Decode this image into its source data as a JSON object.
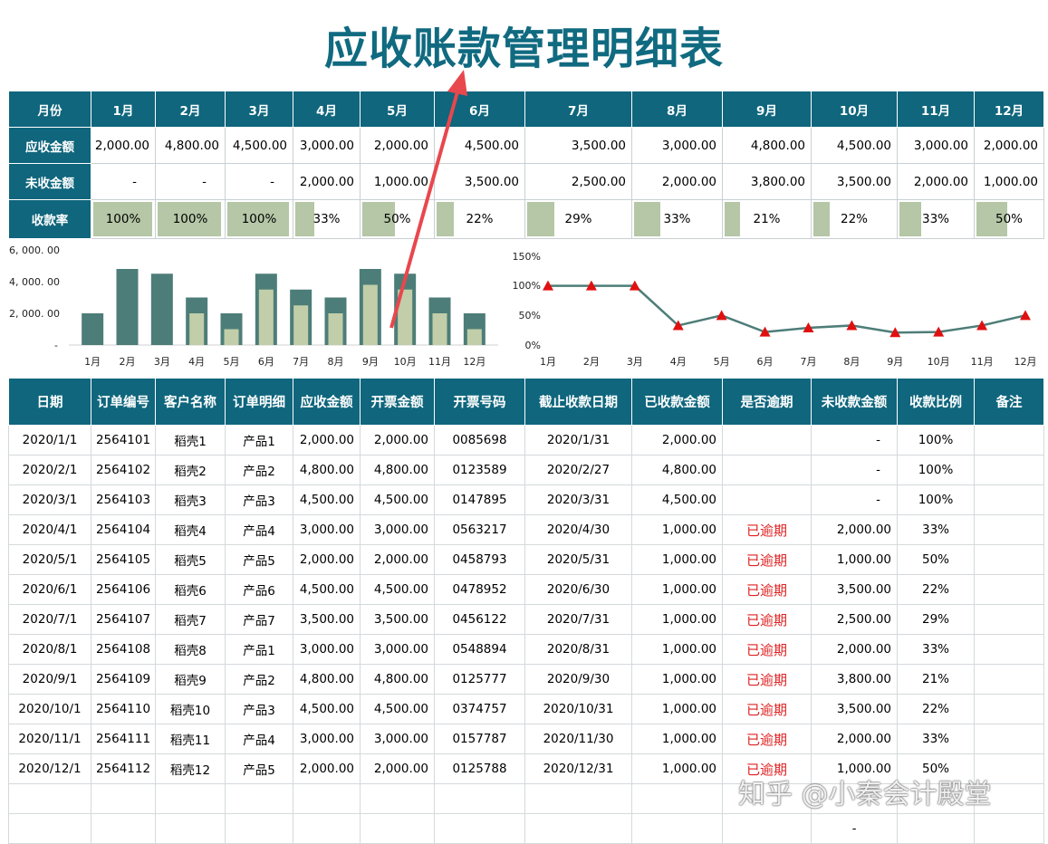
{
  "title": "应收账款管理明细表",
  "summary": {
    "header_label": "月份",
    "months": [
      "1月",
      "2月",
      "3月",
      "4月",
      "5月",
      "6月",
      "7月",
      "8月",
      "9月",
      "10月",
      "11月",
      "12月"
    ],
    "receivable_label": "应收金额",
    "receivable": [
      "2,000.00",
      "4,800.00",
      "4,500.00",
      "3,000.00",
      "2,000.00",
      "4,500.00",
      "3,500.00",
      "3,000.00",
      "4,800.00",
      "4,500.00",
      "3,000.00",
      "2,000.00"
    ],
    "unreceived_label": "未收金额",
    "unreceived": [
      "-",
      "-",
      "-",
      "2,000.00",
      "1,000.00",
      "3,500.00",
      "2,500.00",
      "2,000.00",
      "3,800.00",
      "3,500.00",
      "2,000.00",
      "1,000.00"
    ],
    "rate_label": "收款率",
    "rate": [
      "100%",
      "100%",
      "100%",
      "33%",
      "50%",
      "22%",
      "29%",
      "33%",
      "21%",
      "22%",
      "33%",
      "50%"
    ],
    "rate_values": [
      100,
      100,
      100,
      33,
      50,
      22,
      29,
      33,
      21,
      22,
      33,
      50
    ]
  },
  "chart_data": [
    {
      "type": "bar",
      "categories": [
        "1月",
        "2月",
        "3月",
        "4月",
        "5月",
        "6月",
        "7月",
        "8月",
        "9月",
        "10月",
        "11月",
        "12月"
      ],
      "series": [
        {
          "values": [
            2000,
            4800,
            4500,
            3000,
            2000,
            4500,
            3500,
            3000,
            4800,
            4500,
            3000,
            2000
          ],
          "color": "#4d7d78"
        },
        {
          "values": [
            0,
            0,
            0,
            2000,
            1000,
            3500,
            2500,
            2000,
            3800,
            3500,
            2000,
            1000
          ],
          "color": "#c1cea9"
        }
      ],
      "yticks": [
        "6, 000. 00",
        "4, 000. 00",
        "2, 000. 00",
        "-"
      ],
      "ylim": [
        0,
        6000
      ]
    },
    {
      "type": "line",
      "categories": [
        "1月",
        "2月",
        "3月",
        "4月",
        "5月",
        "6月",
        "7月",
        "8月",
        "9月",
        "10月",
        "11月",
        "12月"
      ],
      "series": [
        {
          "values": [
            100,
            100,
            100,
            33,
            50,
            22,
            29,
            33,
            21,
            22,
            33,
            50
          ],
          "color": "#4d7d78",
          "marker_color": "#e01010"
        }
      ],
      "yticks": [
        "150%",
        "100%",
        "50%",
        "0%"
      ],
      "ylim": [
        0,
        150
      ]
    }
  ],
  "detail": {
    "headers": [
      "日期",
      "订单编号",
      "客户名称",
      "订单明细",
      "应收金额",
      "开票金额",
      "开票号码",
      "截止收款日期",
      "已收款金额",
      "是否逾期",
      "未收款金额",
      "收款比例",
      "备注"
    ],
    "rows": [
      [
        "2020/1/1",
        "2564101",
        "稻壳1",
        "产品1",
        "2,000.00",
        "2,000.00",
        "0085698",
        "2020/1/31",
        "2,000.00",
        "",
        "-",
        "100%",
        ""
      ],
      [
        "2020/2/1",
        "2564102",
        "稻壳2",
        "产品2",
        "4,800.00",
        "4,800.00",
        "0123589",
        "2020/2/27",
        "4,800.00",
        "",
        "-",
        "100%",
        ""
      ],
      [
        "2020/3/1",
        "2564103",
        "稻壳3",
        "产品3",
        "4,500.00",
        "4,500.00",
        "0147895",
        "2020/3/31",
        "4,500.00",
        "",
        "-",
        "100%",
        ""
      ],
      [
        "2020/4/1",
        "2564104",
        "稻壳4",
        "产品4",
        "3,000.00",
        "3,000.00",
        "0563217",
        "2020/4/30",
        "1,000.00",
        "已逾期",
        "2,000.00",
        "33%",
        ""
      ],
      [
        "2020/5/1",
        "2564105",
        "稻壳5",
        "产品5",
        "2,000.00",
        "2,000.00",
        "0458793",
        "2020/5/31",
        "1,000.00",
        "已逾期",
        "1,000.00",
        "50%",
        ""
      ],
      [
        "2020/6/1",
        "2564106",
        "稻壳6",
        "产品6",
        "4,500.00",
        "4,500.00",
        "0478952",
        "2020/6/30",
        "1,000.00",
        "已逾期",
        "3,500.00",
        "22%",
        ""
      ],
      [
        "2020/7/1",
        "2564107",
        "稻壳7",
        "产品7",
        "3,500.00",
        "3,500.00",
        "0456122",
        "2020/7/31",
        "1,000.00",
        "已逾期",
        "2,500.00",
        "29%",
        ""
      ],
      [
        "2020/8/1",
        "2564108",
        "稻壳8",
        "产品1",
        "3,000.00",
        "3,000.00",
        "0548894",
        "2020/8/31",
        "1,000.00",
        "已逾期",
        "2,000.00",
        "33%",
        ""
      ],
      [
        "2020/9/1",
        "2564109",
        "稻壳9",
        "产品2",
        "4,800.00",
        "4,800.00",
        "0125777",
        "2020/9/30",
        "1,000.00",
        "已逾期",
        "3,800.00",
        "21%",
        ""
      ],
      [
        "2020/10/1",
        "2564110",
        "稻壳10",
        "产品3",
        "4,500.00",
        "4,500.00",
        "0374757",
        "2020/10/31",
        "1,000.00",
        "已逾期",
        "3,500.00",
        "22%",
        ""
      ],
      [
        "2020/11/1",
        "2564111",
        "稻壳11",
        "产品4",
        "3,000.00",
        "3,000.00",
        "0157787",
        "2020/11/30",
        "1,000.00",
        "已逾期",
        "2,000.00",
        "33%",
        ""
      ],
      [
        "2020/12/1",
        "2564112",
        "稻壳12",
        "产品5",
        "2,000.00",
        "2,000.00",
        "0125788",
        "2020/12/31",
        "1,000.00",
        "已逾期",
        "1,000.00",
        "50%",
        ""
      ]
    ],
    "empty_row_extra": [
      "",
      "",
      "",
      "",
      "",
      "",
      "",
      "",
      "",
      "",
      "-",
      "",
      ""
    ]
  },
  "watermark": "知乎 @小秦会计殿堂",
  "colors": {
    "header_bg": "#0f667d",
    "title": "#106a80",
    "overdue": "#e02020",
    "rate_bar": "#b5c7a6",
    "arrow": "#e8474d"
  }
}
